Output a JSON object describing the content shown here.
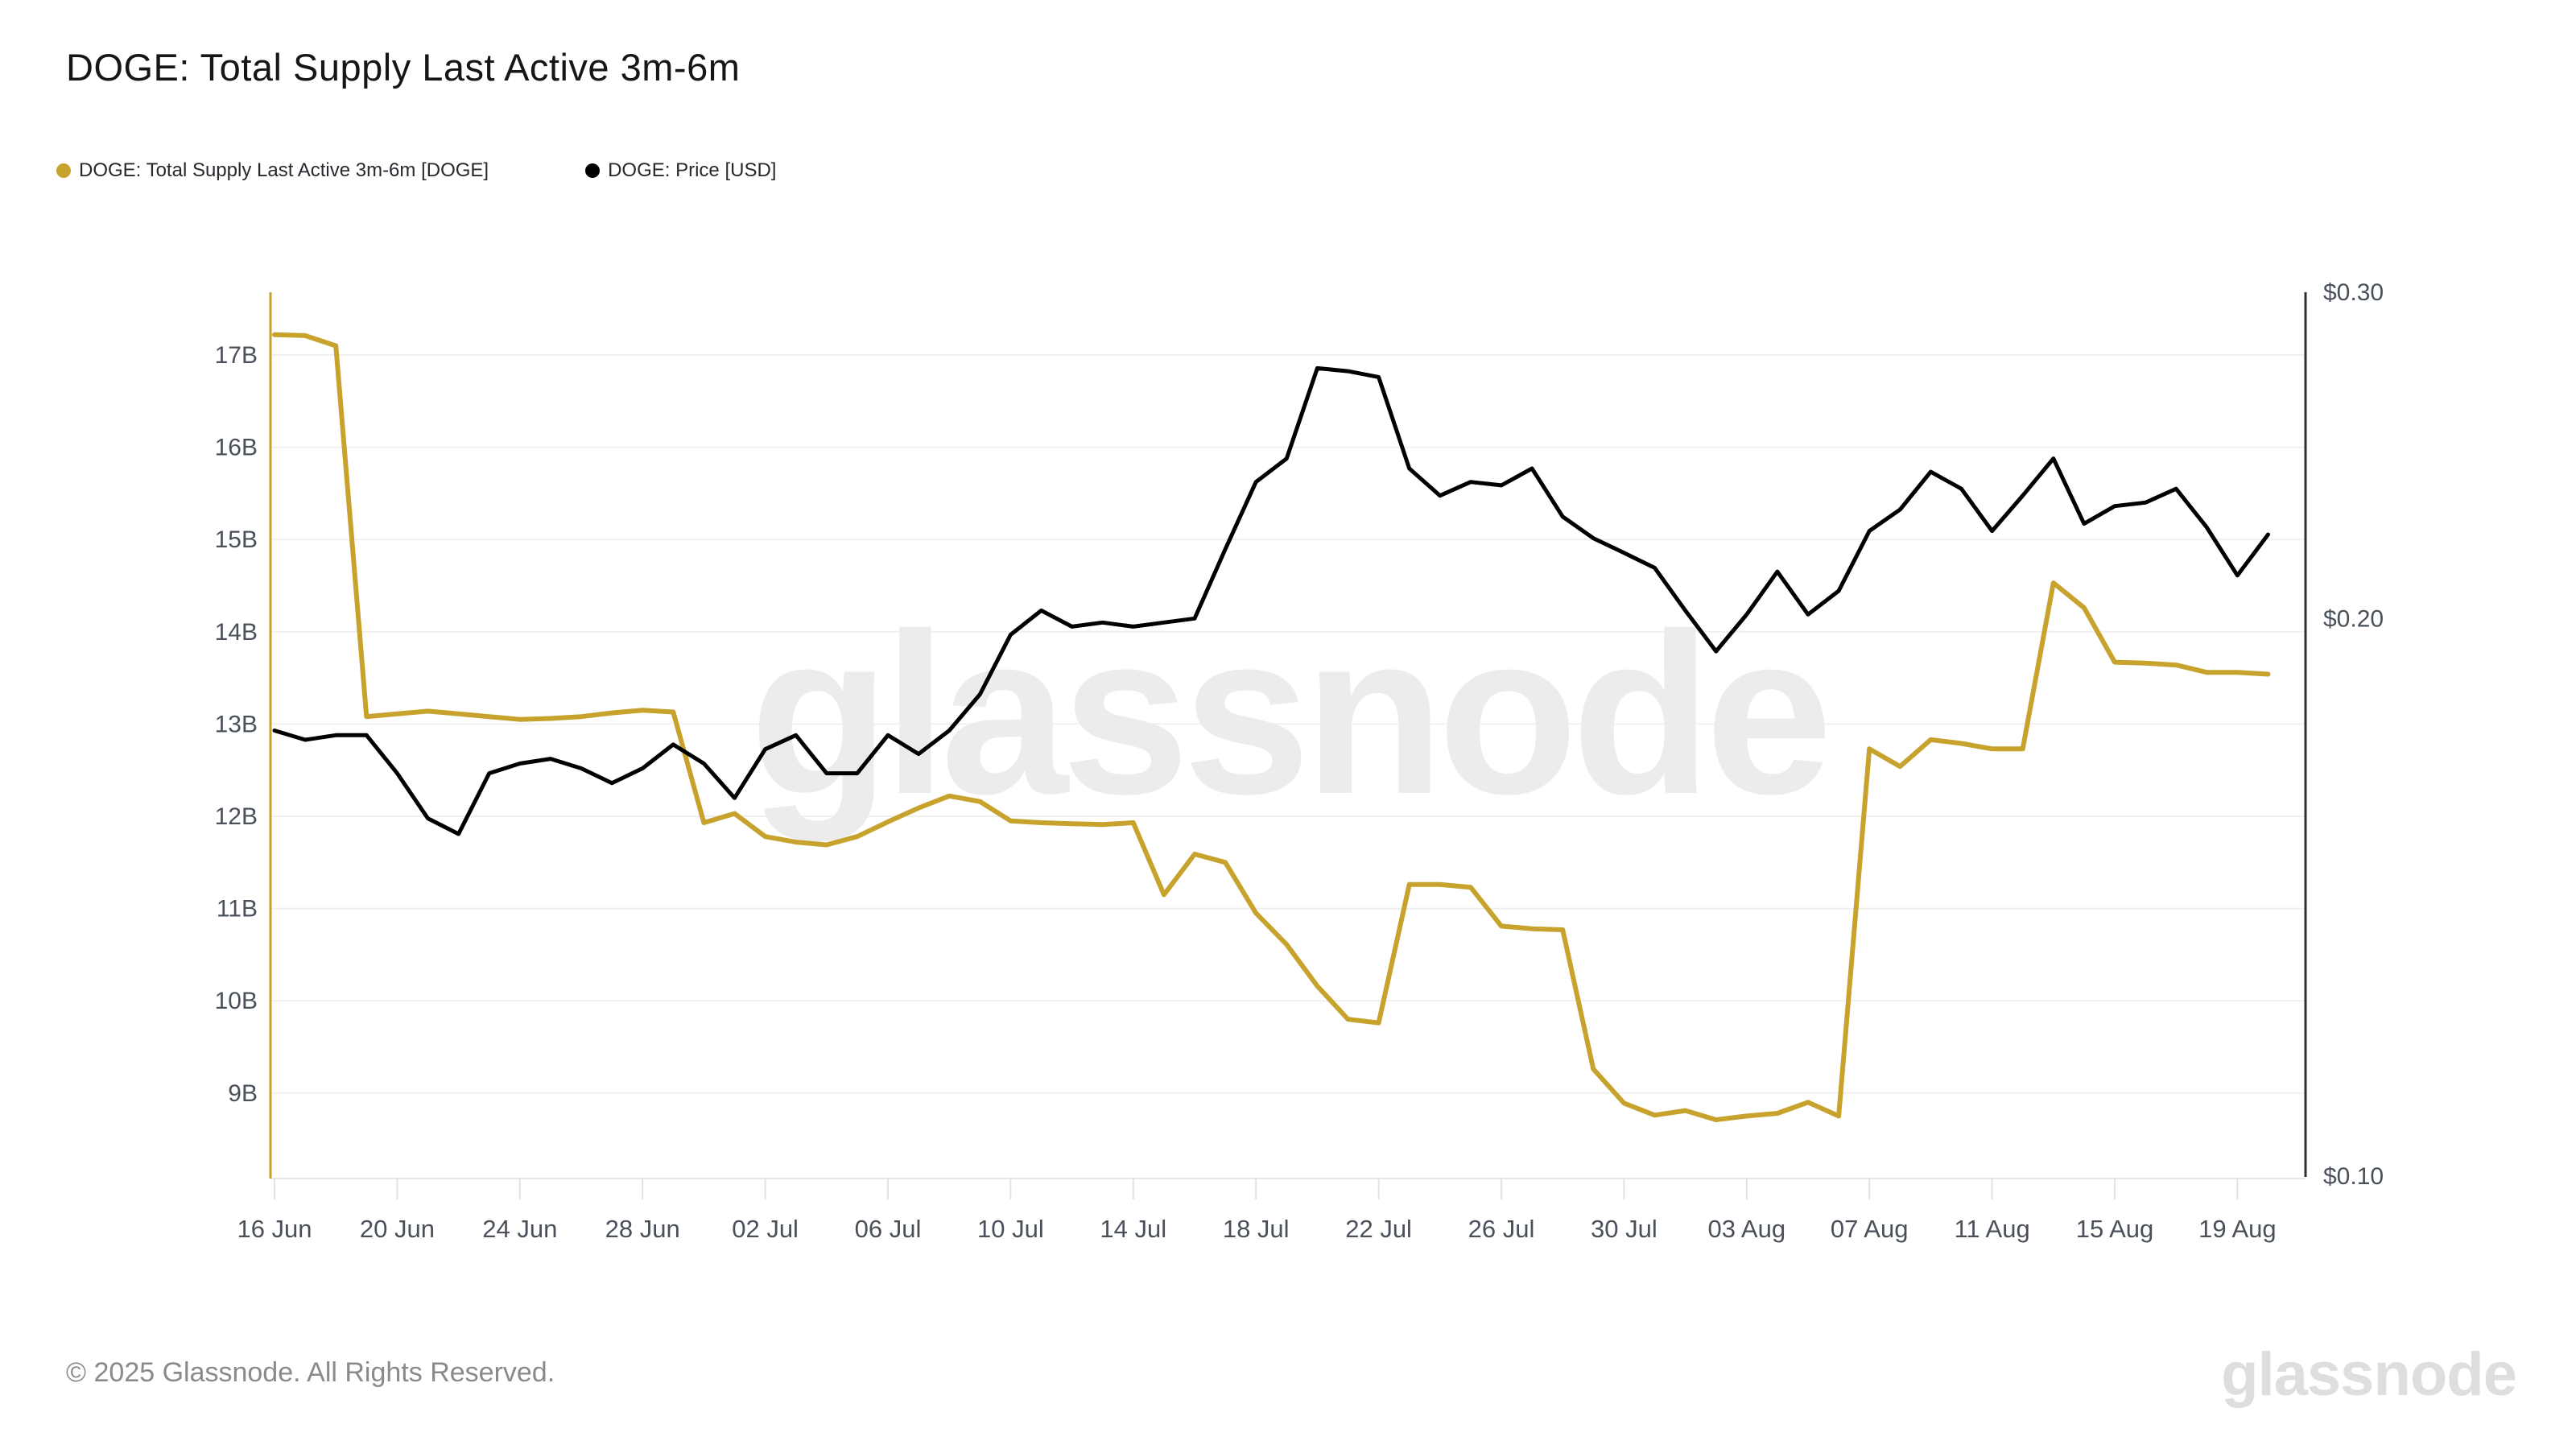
{
  "title": "DOGE: Total Supply Last Active 3m-6m",
  "legend": {
    "items": [
      {
        "label": "DOGE: Total Supply Last Active 3m-6m [DOGE]",
        "color": "#c7a22d"
      },
      {
        "label": "DOGE: Price [USD]",
        "color": "#000000"
      }
    ]
  },
  "watermark": "glassnode",
  "footer": {
    "copyright": "© 2025 Glassnode. All Rights Reserved.",
    "brand": "glassnode"
  },
  "colors": {
    "supply_line": "#c7a22d",
    "price_line": "#000000",
    "grid": "#f0f0f0",
    "axis_bottom": "#e8e8e8",
    "tick": "#e3e3e3",
    "axis_left": "#c7a22d",
    "axis_right": "#2f2f2f",
    "axis_label": "#49505a",
    "watermark": "#ececec"
  },
  "chart_data": {
    "type": "line",
    "title": "DOGE: Total Supply Last Active 3m-6m",
    "grid": true,
    "legend_position": "top-left",
    "x": [
      "16 Jun",
      "17 Jun",
      "18 Jun",
      "19 Jun",
      "20 Jun",
      "21 Jun",
      "22 Jun",
      "23 Jun",
      "24 Jun",
      "25 Jun",
      "26 Jun",
      "27 Jun",
      "28 Jun",
      "29 Jun",
      "30 Jun",
      "01 Jul",
      "02 Jul",
      "03 Jul",
      "04 Jul",
      "05 Jul",
      "06 Jul",
      "07 Jul",
      "08 Jul",
      "09 Jul",
      "10 Jul",
      "11 Jul",
      "12 Jul",
      "13 Jul",
      "14 Jul",
      "15 Jul",
      "16 Jul",
      "17 Jul",
      "18 Jul",
      "19 Jul",
      "20 Jul",
      "21 Jul",
      "22 Jul",
      "23 Jul",
      "24 Jul",
      "25 Jul",
      "26 Jul",
      "27 Jul",
      "28 Jul",
      "29 Jul",
      "30 Jul",
      "31 Jul",
      "01 Aug",
      "02 Aug",
      "03 Aug",
      "04 Aug",
      "05 Aug",
      "06 Aug",
      "07 Aug",
      "08 Aug",
      "09 Aug",
      "10 Aug",
      "11 Aug",
      "12 Aug",
      "13 Aug",
      "14 Aug",
      "15 Aug",
      "16 Aug",
      "17 Aug",
      "18 Aug",
      "19 Aug",
      "20 Aug"
    ],
    "x_tick_label_indices": [
      0,
      4,
      8,
      12,
      16,
      20,
      24,
      28,
      32,
      36,
      40,
      44,
      48,
      52,
      56,
      60,
      64
    ],
    "x_tick_labels": [
      "16 Jun",
      "20 Jun",
      "24 Jun",
      "28 Jun",
      "02 Jul",
      "06 Jul",
      "10 Jul",
      "14 Jul",
      "18 Jul",
      "22 Jul",
      "26 Jul",
      "30 Jul",
      "03 Aug",
      "07 Aug",
      "11 Aug",
      "15 Aug",
      "19 Aug"
    ],
    "series": [
      {
        "name": "DOGE: Total Supply Last Active 3m-6m [DOGE]",
        "axis": "left",
        "unit": "B DOGE",
        "color": "#c7a22d",
        "values": [
          17.22,
          17.21,
          17.1,
          13.08,
          13.11,
          13.14,
          13.11,
          13.08,
          13.05,
          13.06,
          13.08,
          13.12,
          13.15,
          13.13,
          11.93,
          12.03,
          11.78,
          11.72,
          11.69,
          11.78,
          11.94,
          12.09,
          12.22,
          12.16,
          11.95,
          11.93,
          11.92,
          11.91,
          11.93,
          11.15,
          11.59,
          11.5,
          10.95,
          10.61,
          10.16,
          9.8,
          9.76,
          11.26,
          11.26,
          11.23,
          10.81,
          10.78,
          10.77,
          9.26,
          8.89,
          8.76,
          8.81,
          8.71,
          8.75,
          8.78,
          8.9,
          8.75,
          12.73,
          12.54,
          12.83,
          12.79,
          12.73,
          12.73,
          14.53,
          14.26,
          13.67,
          13.66,
          13.64,
          13.56,
          13.56,
          13.54
        ]
      },
      {
        "name": "DOGE: Price [USD]",
        "axis": "right",
        "unit": "USD",
        "color": "#000000",
        "values": [
          0.174,
          0.172,
          0.173,
          0.173,
          0.165,
          0.156,
          0.153,
          0.165,
          0.167,
          0.168,
          0.166,
          0.163,
          0.166,
          0.171,
          0.167,
          0.16,
          0.17,
          0.173,
          0.165,
          0.165,
          0.173,
          0.169,
          0.174,
          0.182,
          0.196,
          0.202,
          0.198,
          0.199,
          0.198,
          0.199,
          0.2,
          0.218,
          0.237,
          0.244,
          0.273,
          0.272,
          0.27,
          0.241,
          0.233,
          0.237,
          0.236,
          0.241,
          0.227,
          0.221,
          0.217,
          0.213,
          0.202,
          0.192,
          0.201,
          0.212,
          0.201,
          0.207,
          0.223,
          0.229,
          0.24,
          0.235,
          0.223,
          0.233,
          0.244,
          0.225,
          0.23,
          0.231,
          0.235,
          0.224,
          0.211,
          0.222
        ]
      }
    ],
    "left_axis": {
      "scale": "linear",
      "label_suffix": "B",
      "ticks": [
        {
          "v": 17,
          "label": "17B"
        },
        {
          "v": 16,
          "label": "16B"
        },
        {
          "v": 15,
          "label": "15B"
        },
        {
          "v": 14,
          "label": "14B"
        },
        {
          "v": 13,
          "label": "13B"
        },
        {
          "v": 12,
          "label": "12B"
        },
        {
          "v": 11,
          "label": "11B"
        },
        {
          "v": 10,
          "label": "10B"
        },
        {
          "v": 9,
          "label": "9B"
        }
      ]
    },
    "right_axis": {
      "scale": "log",
      "ticks": [
        {
          "v": 0.3,
          "label": "$0.30"
        },
        {
          "v": 0.2,
          "label": "$0.20"
        },
        {
          "v": 0.1,
          "label": "$0.10"
        }
      ]
    }
  }
}
